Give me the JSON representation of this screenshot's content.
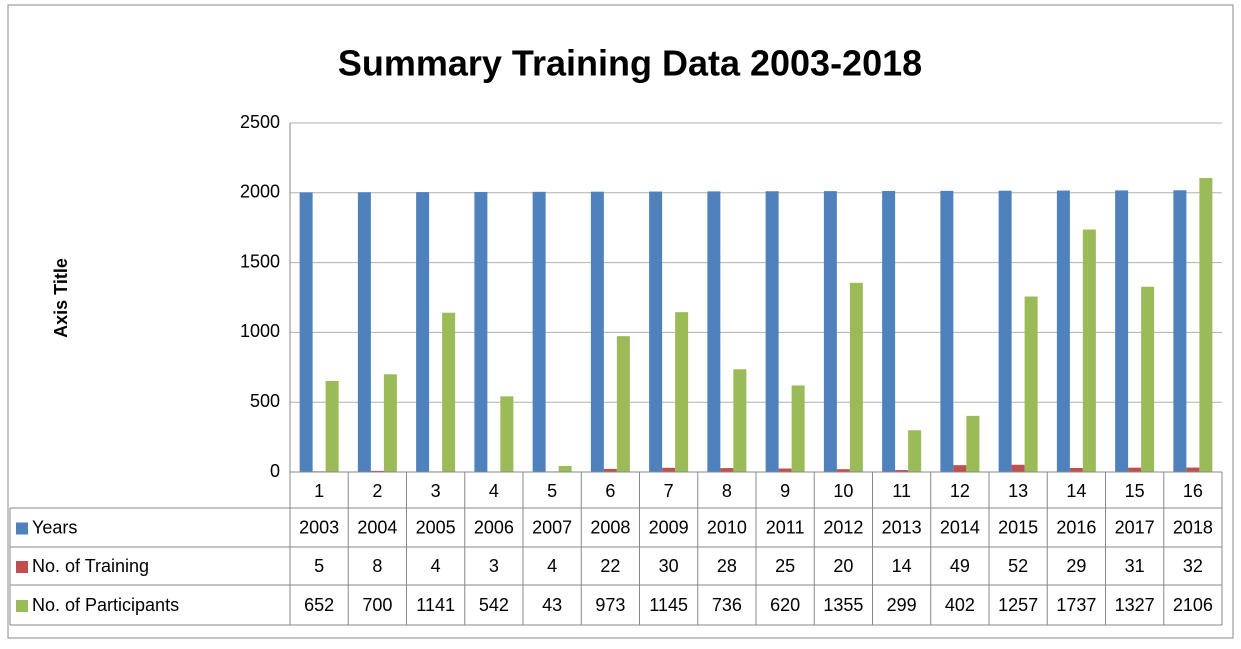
{
  "chart_data": {
    "type": "bar",
    "title": "Summary Training Data 2003-2018",
    "y_label": "Axis Title",
    "categories": [
      "1",
      "2",
      "3",
      "4",
      "5",
      "6",
      "7",
      "8",
      "9",
      "10",
      "11",
      "12",
      "13",
      "14",
      "15",
      "16"
    ],
    "series": [
      {
        "name": "Years",
        "color": "#4f81bd",
        "values": [
          2003,
          2004,
          2005,
          2006,
          2007,
          2008,
          2009,
          2010,
          2011,
          2012,
          2013,
          2014,
          2015,
          2016,
          2017,
          2018
        ]
      },
      {
        "name": "No. of Training",
        "color": "#c0504d",
        "values": [
          5,
          8,
          4,
          3,
          4,
          22,
          30,
          28,
          25,
          20,
          14,
          49,
          52,
          29,
          31,
          32
        ]
      },
      {
        "name": "No. of Participants",
        "color": "#9bbb59",
        "values": [
          652,
          700,
          1141,
          542,
          43,
          973,
          1145,
          736,
          620,
          1355,
          299,
          402,
          1257,
          1737,
          1327,
          2106
        ]
      }
    ],
    "ylim": [
      0,
      2500
    ],
    "yticks": [
      0,
      500,
      1000,
      1500,
      2000,
      2500
    ],
    "grid": true,
    "data_table": true
  }
}
